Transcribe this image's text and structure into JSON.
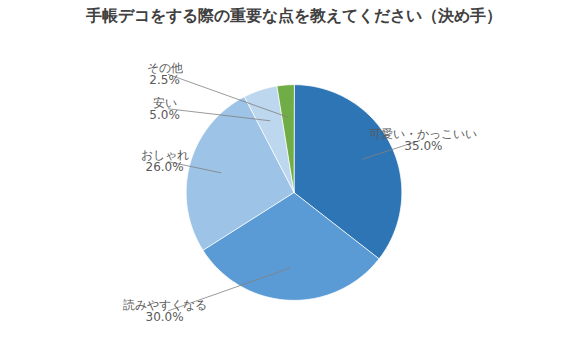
{
  "chart_data": {
    "type": "pie",
    "title": "手帳デコをする際の重要な点を教えてください（決め手）",
    "categories": [
      "可愛い・かっこいい",
      "読みやすくなる",
      "おしゃれ",
      "安い",
      "その他"
    ],
    "values": [
      35.0,
      30.0,
      26.0,
      5.0,
      2.5
    ],
    "value_labels": [
      "35.0%",
      "30.0%",
      "26.0%",
      "5.0%",
      "2.5%"
    ],
    "colors": [
      "#2e75b6",
      "#5b9bd5",
      "#9dc3e6",
      "#bdd7ee",
      "#70ad47"
    ],
    "data_labels": true
  }
}
